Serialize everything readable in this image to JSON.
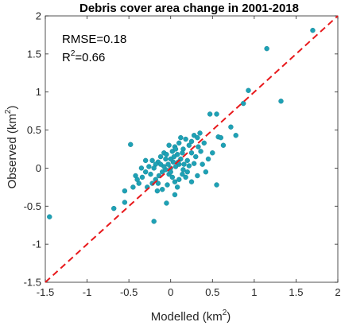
{
  "chart_data": {
    "type": "scatter",
    "title": "Debris cover area change in 2001-2018",
    "xlabel": {
      "main": "Modelled (km",
      "sup": "2",
      "close": ")"
    },
    "ylabel": {
      "main": "Observed (km",
      "sup": "2",
      "close": ")"
    },
    "xlim": [
      -1.5,
      2
    ],
    "ylim": [
      -1.5,
      2
    ],
    "xticks": [
      "-1.5",
      "-1",
      "-0.5",
      "0",
      "0.5",
      "1",
      "1.5",
      "2"
    ],
    "yticks": [
      "-1.5",
      "-1",
      "-0.5",
      "0",
      "0.5",
      "1",
      "1.5",
      "2"
    ],
    "grid": false,
    "annotations": {
      "rmse": "RMSE=0.18",
      "r2_main": "R",
      "r2_sup": "2",
      "r2_rest": "=0.66"
    },
    "reference_line": {
      "x": [
        -1.5,
        2
      ],
      "y": [
        -1.5,
        2
      ],
      "color": "#e8191c",
      "style": "dashed"
    },
    "point_color": "#1ea1b5",
    "points": [
      [
        1.7,
        1.81
      ],
      [
        1.15,
        1.57
      ],
      [
        1.32,
        0.88
      ],
      [
        0.93,
        1.02
      ],
      [
        0.87,
        0.85
      ],
      [
        -1.45,
        -0.64
      ],
      [
        -0.68,
        -0.53
      ],
      [
        -0.2,
        -0.7
      ],
      [
        -0.05,
        -0.46
      ],
      [
        -0.55,
        -0.3
      ],
      [
        -0.48,
        0.31
      ],
      [
        0.55,
        -0.22
      ],
      [
        0.72,
        0.54
      ],
      [
        0.78,
        0.43
      ],
      [
        0.57,
        0.41
      ],
      [
        0.6,
        0.4
      ],
      [
        0.63,
        0.3
      ],
      [
        0.47,
        0.71
      ],
      [
        0.55,
        0.71
      ],
      [
        0.35,
        0.46
      ],
      [
        0.28,
        0.43
      ],
      [
        0.4,
        0.33
      ],
      [
        0.33,
        0.28
      ],
      [
        0.22,
        0.3
      ],
      [
        0.25,
        0.2
      ],
      [
        0.18,
        0.38
      ],
      [
        0.12,
        0.4
      ],
      [
        0.1,
        0.33
      ],
      [
        0.15,
        0.25
      ],
      [
        0.05,
        0.28
      ],
      [
        0.02,
        0.22
      ],
      [
        -0.02,
        0.3
      ],
      [
        0.08,
        0.18
      ],
      [
        0.12,
        0.12
      ],
      [
        0.2,
        0.1
      ],
      [
        0.3,
        0.15
      ],
      [
        0.38,
        0.05
      ],
      [
        0.45,
        0.12
      ],
      [
        0.42,
        -0.05
      ],
      [
        0.32,
        -0.1
      ],
      [
        0.25,
        -0.18
      ],
      [
        0.2,
        -0.05
      ],
      [
        0.15,
        -0.02
      ],
      [
        0.1,
        0.05
      ],
      [
        0.06,
        0.02
      ],
      [
        0.03,
        0.08
      ],
      [
        0.0,
        0.0
      ],
      [
        -0.03,
        0.05
      ],
      [
        -0.06,
        0.12
      ],
      [
        -0.08,
        0.2
      ],
      [
        -0.12,
        0.15
      ],
      [
        -0.15,
        0.08
      ],
      [
        -0.18,
        0.05
      ],
      [
        -0.22,
        0.1
      ],
      [
        -0.26,
        0.02
      ],
      [
        -0.3,
        -0.05
      ],
      [
        -0.34,
        -0.12
      ],
      [
        -0.38,
        -0.2
      ],
      [
        -0.42,
        -0.1
      ],
      [
        -0.45,
        -0.25
      ],
      [
        -0.28,
        -0.25
      ],
      [
        -0.22,
        -0.2
      ],
      [
        -0.18,
        -0.15
      ],
      [
        -0.14,
        -0.1
      ],
      [
        -0.1,
        -0.05
      ],
      [
        -0.06,
        -0.02
      ],
      [
        -0.02,
        -0.08
      ],
      [
        0.02,
        -0.12
      ],
      [
        0.05,
        -0.18
      ],
      [
        0.08,
        -0.25
      ],
      [
        0.1,
        -0.15
      ],
      [
        0.14,
        -0.08
      ],
      [
        -0.04,
        -0.22
      ],
      [
        -0.1,
        -0.28
      ],
      [
        -0.16,
        -0.3
      ],
      [
        -0.2,
        0.0
      ],
      [
        -0.08,
        0.02
      ],
      [
        0.0,
        0.12
      ],
      [
        0.04,
        0.15
      ],
      [
        0.09,
        0.08
      ],
      [
        -0.12,
        0.05
      ],
      [
        -0.24,
        -0.08
      ],
      [
        -0.35,
        0.0
      ],
      [
        0.16,
        0.05
      ],
      [
        0.22,
        0.03
      ],
      [
        0.28,
        0.06
      ],
      [
        0.18,
        -0.12
      ],
      [
        -0.3,
        0.1
      ],
      [
        0.0,
        -0.05
      ],
      [
        -0.05,
        0.18
      ],
      [
        0.06,
        0.25
      ],
      [
        0.14,
        0.2
      ],
      [
        -0.4,
        -0.15
      ],
      [
        0.36,
        0.22
      ],
      [
        0.5,
        0.2
      ],
      [
        -0.55,
        -0.45
      ],
      [
        0.05,
        -0.35
      ],
      [
        0.25,
        0.35
      ],
      [
        0.32,
        0.4
      ],
      [
        -0.15,
        -0.2
      ]
    ]
  }
}
